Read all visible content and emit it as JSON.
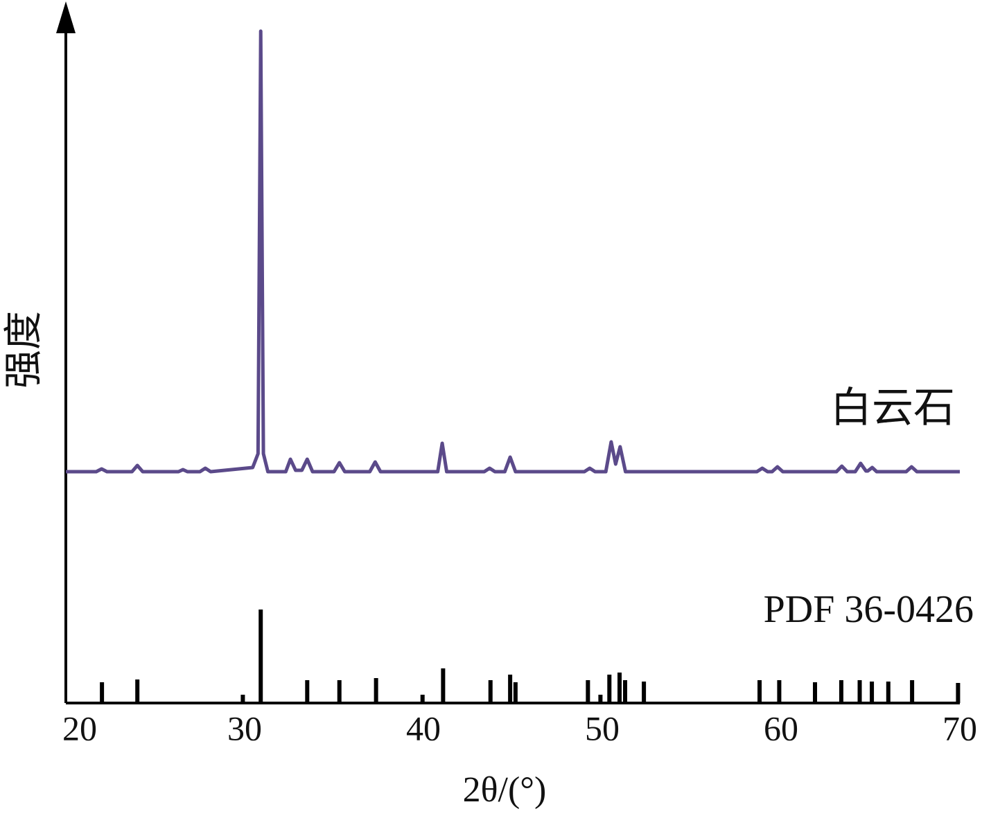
{
  "chart_data": {
    "type": "line",
    "x_label": "2θ/(°)",
    "y_label": "强度",
    "xlim": [
      20,
      70
    ],
    "ylim": [
      0,
      1000
    ],
    "xticks": [
      20,
      30,
      40,
      50,
      60,
      70
    ],
    "series": [
      {
        "name": "白云石",
        "style": "line",
        "color": "#5b4a8a",
        "x": [
          20,
          21.7,
          22.0,
          22.3,
          23.7,
          24.0,
          24.3,
          26.3,
          26.55,
          26.8,
          27.5,
          27.8,
          28.1,
          30.45,
          30.75,
          30.9,
          31.05,
          31.3,
          32.3,
          32.56,
          32.85,
          33.2,
          33.5,
          33.8,
          35.0,
          35.3,
          35.6,
          37.0,
          37.3,
          37.6,
          40.8,
          41.05,
          41.3,
          43.4,
          43.7,
          44.0,
          44.55,
          44.85,
          45.15,
          49.0,
          49.3,
          49.6,
          50.2,
          50.5,
          50.75,
          51.0,
          51.3,
          58.65,
          58.95,
          59.25,
          59.5,
          59.8,
          60.1,
          63.1,
          63.4,
          63.7,
          64.15,
          64.45,
          64.75,
          64.85,
          65.1,
          65.35,
          67.0,
          67.3,
          67.6,
          70
        ],
        "values": [
          334,
          334,
          338,
          334,
          334,
          343,
          334,
          334,
          337,
          334,
          334,
          339,
          334,
          340,
          360,
          970,
          360,
          334,
          334,
          352,
          336,
          336,
          352,
          334,
          334,
          347,
          334,
          334,
          348,
          334,
          334,
          375,
          334,
          334,
          339,
          334,
          334,
          355,
          334,
          334,
          339,
          334,
          334,
          377,
          345,
          370,
          334,
          334,
          339,
          334,
          334,
          341,
          334,
          334,
          342,
          334,
          334,
          346,
          335,
          335,
          340,
          334,
          334,
          341,
          334,
          334
        ]
      },
      {
        "name": "PDF 36-0426",
        "style": "stick",
        "color": "#000000",
        "x": [
          22.02,
          24.0,
          29.9,
          30.9,
          33.5,
          35.3,
          37.35,
          39.95,
          41.1,
          43.75,
          44.85,
          45.15,
          49.2,
          49.9,
          50.4,
          50.97,
          51.28,
          52.33,
          58.8,
          59.9,
          61.9,
          63.37,
          64.4,
          65.08,
          66.0,
          67.33,
          69.9
        ],
        "values": [
          30,
          34,
          12,
          135,
          33,
          33,
          36,
          12,
          50,
          33,
          41,
          30,
          33,
          12,
          41,
          44,
          33,
          31,
          33,
          33,
          30,
          33,
          33,
          31,
          31,
          33,
          29
        ]
      }
    ]
  }
}
